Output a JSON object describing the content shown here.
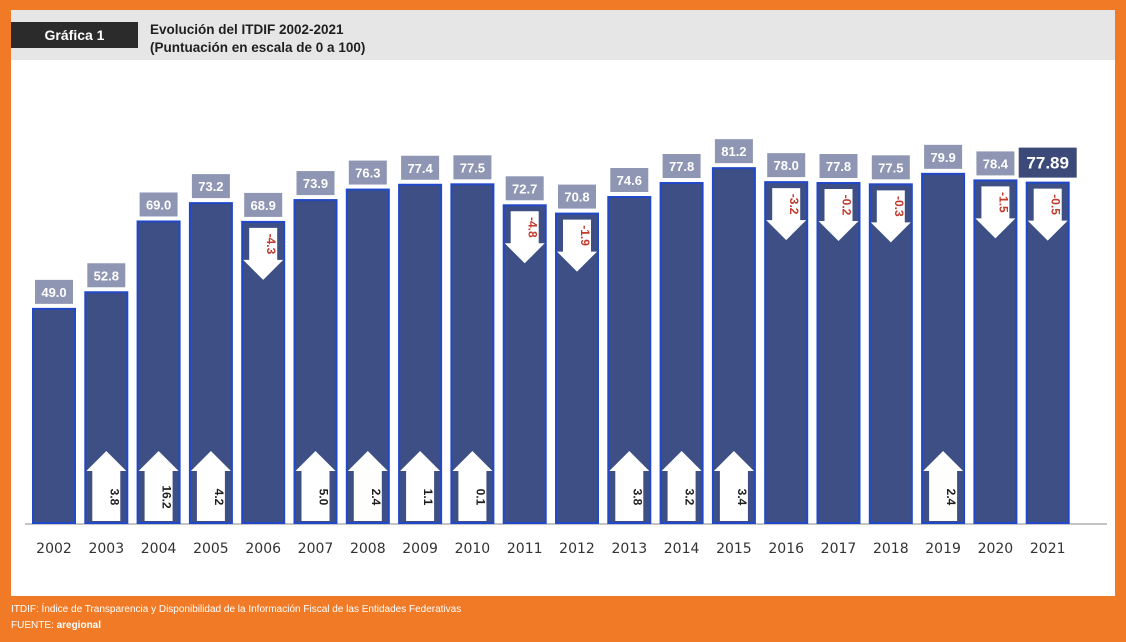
{
  "header": {
    "figure_label": "Gráfica 1",
    "title_line1": "Evolución del ITDIF 2002-2021",
    "title_line2": "(Puntuación en escala de 0 a 100)"
  },
  "footer": {
    "note": "ITDIF: Índice de Transparencia y Disponibilidad de la Información Fiscal de las Entidades Federativas",
    "source_label": "FUENTE:",
    "source_value": "aregional"
  },
  "colors": {
    "bar": "#3d4f85",
    "bar_edge": "#2148c8",
    "value_box": "#8f96b3",
    "final_box": "#3b4a78",
    "up_change": "#1f1f1f",
    "down_change": "#c23a2b",
    "background": "#f07a26"
  },
  "chart_data": {
    "type": "bar",
    "title": "Evolución del ITDIF 2002-2021",
    "subtitle": "(Puntuación en escala de 0 a 100)",
    "xlabel": "",
    "ylabel": "",
    "ylim": [
      0,
      100
    ],
    "grid": false,
    "categories": [
      "2002",
      "2003",
      "2004",
      "2005",
      "2006",
      "2007",
      "2008",
      "2009",
      "2010",
      "2011",
      "2012",
      "2013",
      "2014",
      "2015",
      "2016",
      "2017",
      "2018",
      "2019",
      "2020",
      "2021"
    ],
    "values": [
      49.0,
      52.8,
      69.0,
      73.2,
      68.9,
      73.9,
      76.3,
      77.4,
      77.5,
      72.7,
      70.8,
      74.6,
      77.8,
      81.2,
      78.0,
      77.8,
      77.5,
      79.9,
      78.4,
      77.89
    ],
    "value_labels": [
      "49.0",
      "52.8",
      "69.0",
      "73.2",
      "68.9",
      "73.9",
      "76.3",
      "77.4",
      "77.5",
      "72.7",
      "70.8",
      "74.6",
      "77.8",
      "81.2",
      "78.0",
      "77.8",
      "77.5",
      "79.9",
      "78.4",
      "77.89"
    ],
    "changes": [
      null,
      3.8,
      16.2,
      4.2,
      -4.3,
      5.0,
      2.4,
      1.1,
      0.1,
      -4.8,
      -1.9,
      3.8,
      3.2,
      3.4,
      -3.2,
      -0.2,
      -0.3,
      2.4,
      -1.5,
      -0.5
    ],
    "change_labels": [
      null,
      "3.8",
      "16.2",
      "4.2",
      "-4.3",
      "5.0",
      "2.4",
      "1.1",
      "0.1",
      "-4.8",
      "-1.9",
      "3.8",
      "3.2",
      "3.4",
      "-3.2",
      "-0.2",
      "-0.3",
      "2.4",
      "-1.5",
      "-0.5"
    ]
  }
}
